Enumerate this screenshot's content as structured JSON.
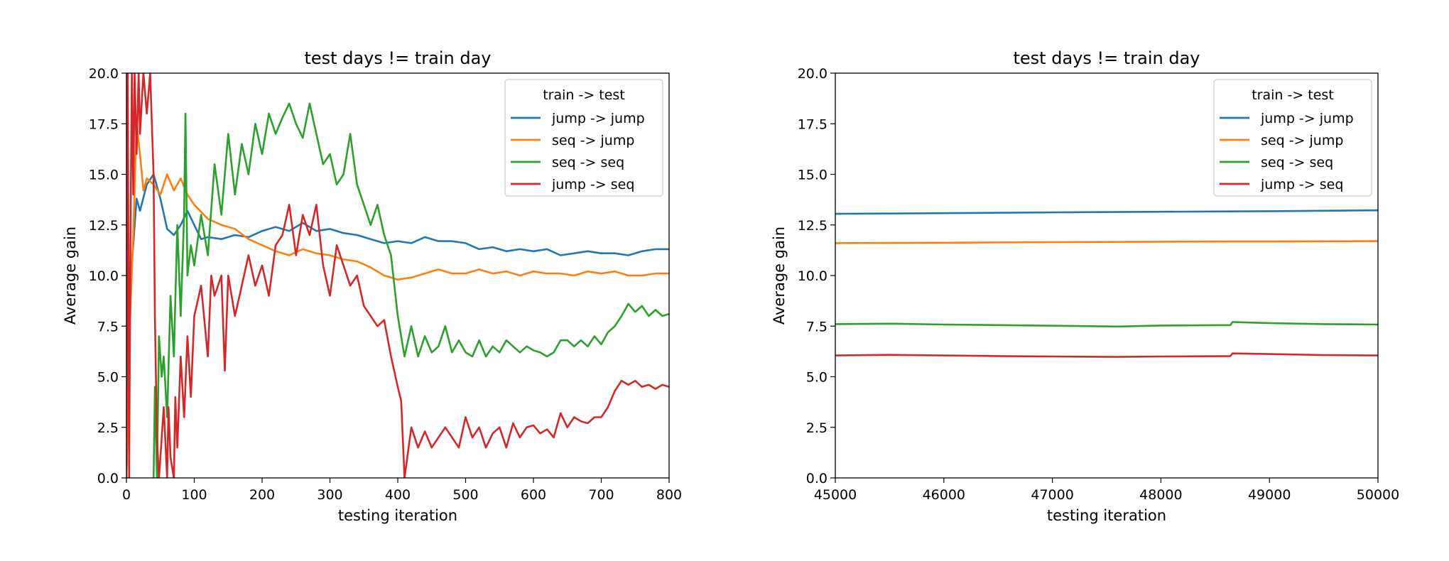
{
  "chart_data": [
    {
      "type": "line",
      "title": "test days != train day",
      "xlabel": "testing iteration",
      "ylabel": "Average gain",
      "xlim": [
        0,
        800
      ],
      "ylim": [
        0,
        20
      ],
      "xticks": [
        "0",
        "100",
        "200",
        "300",
        "400",
        "500",
        "600",
        "700",
        "800"
      ],
      "yticks": [
        "0.0",
        "2.5",
        "5.0",
        "7.5",
        "10.0",
        "12.5",
        "15.0",
        "17.5",
        "20.0"
      ],
      "legend_title": "train -> test",
      "legend_position": "top-right",
      "grid": false,
      "series": [
        {
          "name": "jump -> jump",
          "color": "#1f77b4",
          "x": [
            0,
            5,
            10,
            15,
            20,
            30,
            40,
            50,
            60,
            70,
            80,
            90,
            100,
            110,
            120,
            140,
            160,
            180,
            200,
            220,
            240,
            260,
            280,
            300,
            320,
            340,
            360,
            380,
            400,
            420,
            440,
            460,
            480,
            500,
            520,
            540,
            560,
            580,
            600,
            620,
            640,
            660,
            680,
            700,
            720,
            740,
            760,
            780,
            800
          ],
          "y": [
            0,
            9.5,
            11.5,
            13.8,
            13.2,
            14.5,
            15.0,
            13.8,
            12.3,
            12.0,
            12.5,
            13.2,
            12.5,
            11.8,
            11.9,
            11.8,
            12.0,
            11.9,
            12.2,
            12.4,
            12.2,
            12.6,
            12.2,
            12.3,
            12.1,
            12.0,
            11.8,
            11.6,
            11.7,
            11.6,
            11.9,
            11.7,
            11.7,
            11.6,
            11.3,
            11.4,
            11.2,
            11.3,
            11.2,
            11.3,
            11.0,
            11.1,
            11.2,
            11.1,
            11.1,
            11.0,
            11.2,
            11.3,
            11.3
          ]
        },
        {
          "name": "seq -> jump",
          "color": "#ff7f0e",
          "x": [
            0,
            5,
            10,
            15,
            20,
            25,
            30,
            40,
            50,
            60,
            70,
            80,
            90,
            100,
            120,
            140,
            160,
            180,
            200,
            220,
            240,
            260,
            280,
            300,
            320,
            340,
            360,
            380,
            400,
            420,
            440,
            460,
            480,
            500,
            520,
            540,
            560,
            580,
            600,
            620,
            640,
            660,
            680,
            700,
            720,
            740,
            760,
            780,
            800
          ],
          "y": [
            0,
            7.5,
            12.0,
            17.5,
            16.0,
            14.2,
            14.8,
            14.5,
            14.0,
            15.0,
            14.2,
            14.8,
            14.0,
            13.5,
            12.8,
            12.5,
            12.3,
            11.8,
            11.5,
            11.2,
            11.0,
            11.3,
            11.1,
            11.0,
            10.8,
            10.7,
            10.4,
            10.0,
            9.8,
            9.9,
            10.1,
            10.3,
            10.1,
            10.1,
            10.3,
            10.1,
            10.2,
            10.0,
            10.2,
            10.1,
            10.1,
            10.0,
            10.2,
            10.1,
            10.2,
            10.0,
            10.0,
            10.1,
            10.1
          ]
        },
        {
          "name": "seq -> seq",
          "color": "#2ca02c",
          "x": [
            40,
            42,
            45,
            48,
            52,
            55,
            60,
            65,
            70,
            75,
            80,
            85,
            87,
            90,
            95,
            100,
            110,
            120,
            130,
            140,
            150,
            160,
            170,
            180,
            190,
            200,
            210,
            220,
            230,
            240,
            250,
            260,
            270,
            280,
            290,
            300,
            310,
            320,
            330,
            340,
            350,
            360,
            370,
            380,
            390,
            400,
            410,
            420,
            430,
            440,
            450,
            460,
            470,
            480,
            490,
            500,
            510,
            520,
            530,
            540,
            550,
            560,
            570,
            580,
            590,
            600,
            610,
            620,
            630,
            640,
            650,
            660,
            670,
            680,
            690,
            700,
            710,
            720,
            730,
            740,
            750,
            760,
            770,
            780,
            790,
            800
          ],
          "y": [
            0,
            4.5,
            0,
            7.0,
            5.0,
            6.0,
            3.0,
            9.0,
            6.0,
            12.5,
            8.0,
            13.0,
            18.0,
            10.0,
            11.5,
            10.5,
            13.0,
            11.0,
            15.5,
            13.0,
            17.0,
            14.0,
            16.5,
            15.0,
            17.5,
            16.0,
            18.0,
            17.0,
            17.8,
            18.5,
            17.5,
            16.8,
            18.5,
            17.0,
            15.5,
            16.0,
            14.5,
            15.0,
            17.0,
            14.5,
            13.5,
            12.5,
            13.5,
            12.0,
            11.0,
            8.0,
            6.0,
            7.5,
            6.0,
            7.0,
            6.2,
            6.5,
            7.5,
            6.2,
            6.8,
            6.2,
            6.0,
            6.8,
            6.0,
            6.5,
            6.2,
            6.8,
            6.5,
            6.2,
            6.5,
            6.3,
            6.2,
            6.0,
            6.2,
            6.8,
            6.8,
            6.5,
            6.8,
            6.5,
            7.0,
            6.6,
            7.2,
            7.5,
            8.0,
            8.6,
            8.2,
            8.5,
            8.0,
            8.3,
            8.0,
            8.1
          ]
        },
        {
          "name": "jump -> seq",
          "color": "#d62728",
          "x": [
            0,
            2,
            4,
            6,
            8,
            10,
            12,
            15,
            18,
            20,
            25,
            30,
            35,
            40,
            42,
            45,
            48,
            50,
            55,
            60,
            62,
            65,
            70,
            72,
            75,
            80,
            85,
            90,
            95,
            100,
            110,
            120,
            125,
            130,
            140,
            145,
            150,
            160,
            170,
            180,
            190,
            200,
            210,
            220,
            230,
            240,
            250,
            260,
            270,
            280,
            290,
            300,
            310,
            320,
            330,
            340,
            350,
            360,
            370,
            380,
            390,
            400,
            405,
            410,
            420,
            430,
            440,
            450,
            460,
            470,
            480,
            490,
            500,
            510,
            520,
            530,
            540,
            550,
            560,
            570,
            580,
            590,
            600,
            610,
            620,
            630,
            640,
            650,
            660,
            670,
            680,
            690,
            700,
            710,
            720,
            730,
            740,
            750,
            760,
            770,
            780,
            790,
            800
          ],
          "y": [
            0,
            20,
            0,
            12,
            20,
            14,
            20,
            16,
            20,
            17,
            20,
            18,
            20,
            15,
            8,
            2,
            0,
            1,
            3.5,
            0,
            3.5,
            1,
            0,
            4,
            1.5,
            6,
            3,
            7,
            4,
            8,
            9.5,
            6,
            10,
            9,
            10,
            5.3,
            10,
            8,
            9.5,
            11,
            9.5,
            10.5,
            9,
            11.5,
            12,
            13.5,
            11,
            13,
            12,
            13.5,
            10.5,
            9.0,
            11.5,
            10.5,
            9.5,
            10.0,
            8.5,
            8.0,
            7.5,
            7.8,
            6.0,
            4.5,
            3.8,
            0,
            2.5,
            1.5,
            2.3,
            1.5,
            2.0,
            2.5,
            2.0,
            1.5,
            3.0,
            2.0,
            2.5,
            1.5,
            2.2,
            2.5,
            1.5,
            2.7,
            2.0,
            2.5,
            2.6,
            2.2,
            2.4,
            2.0,
            3.2,
            2.5,
            3.0,
            2.8,
            2.7,
            3.0,
            3.0,
            3.5,
            4.3,
            4.8,
            4.6,
            4.8,
            4.5,
            4.6,
            4.4,
            4.6,
            4.5
          ]
        }
      ]
    },
    {
      "type": "line",
      "title": "test days != train day",
      "xlabel": "testing iteration",
      "ylabel": "Average gain",
      "xlim": [
        45000,
        50000
      ],
      "ylim": [
        0,
        20
      ],
      "xticks": [
        "45000",
        "46000",
        "47000",
        "48000",
        "49000",
        "50000"
      ],
      "yticks": [
        "0.0",
        "2.5",
        "5.0",
        "7.5",
        "10.0",
        "12.5",
        "15.0",
        "17.5",
        "20.0"
      ],
      "legend_title": "train -> test",
      "legend_position": "top-right",
      "grid": false,
      "series": [
        {
          "name": "jump -> jump",
          "color": "#1f77b4",
          "x": [
            45000,
            46000,
            47000,
            48000,
            48650,
            49000,
            50000
          ],
          "y": [
            13.05,
            13.08,
            13.12,
            13.15,
            13.17,
            13.18,
            13.22
          ]
        },
        {
          "name": "seq -> jump",
          "color": "#ff7f0e",
          "x": [
            45000,
            46000,
            47000,
            48000,
            48650,
            49000,
            50000
          ],
          "y": [
            11.6,
            11.62,
            11.65,
            11.67,
            11.68,
            11.68,
            11.7
          ]
        },
        {
          "name": "seq -> seq",
          "color": "#2ca02c",
          "x": [
            45000,
            45500,
            46000,
            46500,
            47000,
            47600,
            48000,
            48640,
            48660,
            49000,
            49500,
            50000
          ],
          "y": [
            7.6,
            7.62,
            7.58,
            7.55,
            7.52,
            7.48,
            7.53,
            7.55,
            7.7,
            7.65,
            7.6,
            7.58
          ]
        },
        {
          "name": "jump -> seq",
          "color": "#d62728",
          "x": [
            45000,
            45500,
            46000,
            46500,
            47000,
            47600,
            48000,
            48640,
            48660,
            49000,
            49500,
            50000
          ],
          "y": [
            6.05,
            6.08,
            6.05,
            6.02,
            6.0,
            5.98,
            6.0,
            6.02,
            6.15,
            6.12,
            6.07,
            6.05
          ]
        }
      ]
    }
  ]
}
